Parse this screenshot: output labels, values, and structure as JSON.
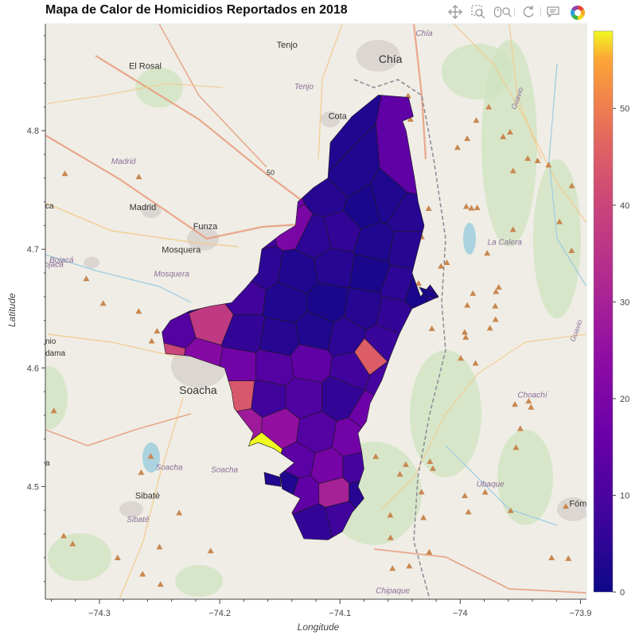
{
  "chart_data": {
    "type": "choropleth-map",
    "title": "Mapa de Calor de Homicidios Reportados en 2018",
    "xlabel": "Longitude",
    "ylabel": "Latitude",
    "xlim": [
      -74.345,
      -73.895
    ],
    "ylim": [
      4.405,
      4.89
    ],
    "x_ticks": [
      -74.3,
      -74.2,
      -74.1,
      -74.0,
      -73.9
    ],
    "x_tick_labels": [
      "−74.3",
      "−74.2",
      "−74.1",
      "−74",
      "−73.9"
    ],
    "y_ticks": [
      4.5,
      4.6,
      4.7,
      4.8
    ],
    "y_tick_labels": [
      "4.5",
      "4.6",
      "4.7",
      "4.8"
    ],
    "colorbar": {
      "palette": "Plasma",
      "range": [
        0,
        58
      ],
      "ticks": [
        0,
        10,
        20,
        30,
        40,
        50
      ],
      "tick_labels": [
        "0",
        "10",
        "20",
        "30",
        "40",
        "50"
      ]
    },
    "regions": [
      {
        "lon": -74.115,
        "lat": 4.78,
        "value": 3
      },
      {
        "lon": -74.11,
        "lat": 4.745,
        "value": 4
      },
      {
        "lon": -74.095,
        "lat": 4.76,
        "value": 3
      },
      {
        "lon": -74.08,
        "lat": 4.735,
        "value": 2
      },
      {
        "lon": -74.06,
        "lat": 4.74,
        "value": 3
      },
      {
        "lon": -74.038,
        "lat": 4.765,
        "value": 14
      },
      {
        "lon": -74.045,
        "lat": 4.73,
        "value": 4
      },
      {
        "lon": -74.18,
        "lat": 4.742,
        "value": 34
      },
      {
        "lon": -74.15,
        "lat": 4.735,
        "value": 16
      },
      {
        "lon": -74.14,
        "lat": 4.72,
        "value": 20
      },
      {
        "lon": -74.17,
        "lat": 4.715,
        "value": 8
      },
      {
        "lon": -74.12,
        "lat": 4.71,
        "value": 5
      },
      {
        "lon": -74.1,
        "lat": 4.715,
        "value": 6
      },
      {
        "lon": -74.07,
        "lat": 4.705,
        "value": 3
      },
      {
        "lon": -74.045,
        "lat": 4.7,
        "value": 4
      },
      {
        "lon": -74.2,
        "lat": 4.69,
        "value": 10
      },
      {
        "lon": -74.165,
        "lat": 4.685,
        "value": 5
      },
      {
        "lon": -74.135,
        "lat": 4.68,
        "value": 3
      },
      {
        "lon": -74.105,
        "lat": 4.685,
        "value": 4
      },
      {
        "lon": -74.075,
        "lat": 4.68,
        "value": 2
      },
      {
        "lon": -74.05,
        "lat": 4.67,
        "value": 5
      },
      {
        "lon": -74.215,
        "lat": 4.665,
        "value": 6
      },
      {
        "lon": -74.18,
        "lat": 4.66,
        "value": 8
      },
      {
        "lon": -74.145,
        "lat": 4.655,
        "value": 3
      },
      {
        "lon": -74.11,
        "lat": 4.655,
        "value": 2
      },
      {
        "lon": -74.08,
        "lat": 4.65,
        "value": 4
      },
      {
        "lon": -74.055,
        "lat": 4.645,
        "value": 6
      },
      {
        "lon": -74.02,
        "lat": 4.665,
        "value": 5
      },
      {
        "lon": -74.24,
        "lat": 4.63,
        "value": 12
      },
      {
        "lon": -74.205,
        "lat": 4.64,
        "value": 37
      },
      {
        "lon": -74.18,
        "lat": 4.63,
        "value": 6
      },
      {
        "lon": -74.15,
        "lat": 4.625,
        "value": 4
      },
      {
        "lon": -74.12,
        "lat": 4.63,
        "value": 3
      },
      {
        "lon": -74.095,
        "lat": 4.625,
        "value": 5
      },
      {
        "lon": -74.065,
        "lat": 4.62,
        "value": 7
      },
      {
        "lon": -74.245,
        "lat": 4.61,
        "value": 40
      },
      {
        "lon": -74.215,
        "lat": 4.605,
        "value": 22
      },
      {
        "lon": -74.185,
        "lat": 4.6,
        "value": 18
      },
      {
        "lon": -74.155,
        "lat": 4.6,
        "value": 12
      },
      {
        "lon": -74.125,
        "lat": 4.605,
        "value": 14
      },
      {
        "lon": -74.09,
        "lat": 4.6,
        "value": 8
      },
      {
        "lon": -74.075,
        "lat": 4.61,
        "value": 45
      },
      {
        "lon": -74.06,
        "lat": 4.59,
        "value": 9
      },
      {
        "lon": -74.185,
        "lat": 4.578,
        "value": 44
      },
      {
        "lon": -74.16,
        "lat": 4.575,
        "value": 8
      },
      {
        "lon": -74.13,
        "lat": 4.575,
        "value": 11
      },
      {
        "lon": -74.1,
        "lat": 4.575,
        "value": 6
      },
      {
        "lon": -74.075,
        "lat": 4.56,
        "value": 17
      },
      {
        "lon": -74.18,
        "lat": 4.55,
        "value": 28
      },
      {
        "lon": -74.15,
        "lat": 4.549,
        "value": 25
      },
      {
        "lon": -74.12,
        "lat": 4.545,
        "value": 12
      },
      {
        "lon": -74.09,
        "lat": 4.54,
        "value": 18
      },
      {
        "lon": -74.165,
        "lat": 4.53,
        "value": 58
      },
      {
        "lon": -74.135,
        "lat": 4.52,
        "value": 13
      },
      {
        "lon": -74.11,
        "lat": 4.515,
        "value": 19
      },
      {
        "lon": -74.085,
        "lat": 4.515,
        "value": 9
      },
      {
        "lon": -74.13,
        "lat": 4.495,
        "value": 14
      },
      {
        "lon": -74.105,
        "lat": 4.495,
        "value": 30
      },
      {
        "lon": -74.08,
        "lat": 4.495,
        "value": 4
      },
      {
        "lon": -74.145,
        "lat": 4.5,
        "value": 3
      },
      {
        "lon": -74.12,
        "lat": 4.47,
        "value": 6
      },
      {
        "lon": -74.1,
        "lat": 4.475,
        "value": 8
      },
      {
        "lon": -74.035,
        "lat": 4.665,
        "value": 2
      }
    ]
  },
  "basemap": {
    "towns": [
      {
        "name": "Chía",
        "lon": -74.058,
        "lat": 4.857,
        "size": 14
      },
      {
        "name": "Tenjo",
        "lon": -74.144,
        "lat": 4.87,
        "size": 11
      },
      {
        "name": "El Rosal",
        "lon": -74.262,
        "lat": 4.852,
        "size": 11
      },
      {
        "name": "Cota",
        "lon": -74.102,
        "lat": 4.81,
        "size": 11
      },
      {
        "name": "Madrid",
        "lon": -74.264,
        "lat": 4.733,
        "size": 11
      },
      {
        "name": "Funza",
        "lon": -74.212,
        "lat": 4.717,
        "size": 11
      },
      {
        "name": "Mosquera",
        "lon": -74.232,
        "lat": 4.697,
        "size": 11
      },
      {
        "name": "Soacha",
        "lon": -74.218,
        "lat": 4.578,
        "size": 14
      },
      {
        "name": "Sibaté",
        "lon": -74.26,
        "lat": 4.49,
        "size": 11
      },
      {
        "name": "Fóme",
        "lon": -73.9,
        "lat": 4.483,
        "size": 11
      }
    ],
    "labels": [
      {
        "name": "Chía",
        "lon": -74.03,
        "lat": 4.88
      },
      {
        "name": "Tenjo",
        "lon": -74.13,
        "lat": 4.835
      },
      {
        "name": "Madrid",
        "lon": -74.28,
        "lat": 4.772
      },
      {
        "name": "Mosquera",
        "lon": -74.24,
        "lat": 4.677
      },
      {
        "name": "Bojacá",
        "lon": -74.34,
        "lat": 4.685
      },
      {
        "name": "Soacha",
        "lon": -74.196,
        "lat": 4.512
      },
      {
        "name": "Soacha",
        "lon": -74.242,
        "lat": 4.514
      },
      {
        "name": "Sibaté",
        "lon": -74.268,
        "lat": 4.47
      },
      {
        "name": "Ubaque",
        "lon": -73.975,
        "lat": 4.5
      },
      {
        "name": "Choachí",
        "lon": -73.94,
        "lat": 4.575
      },
      {
        "name": "La Calera",
        "lon": -73.963,
        "lat": 4.704
      },
      {
        "name": "Chipaque",
        "lon": -74.056,
        "lat": 4.41
      }
    ],
    "edge_fragments": [
      "ca",
      "Bojacá",
      "nio",
      "dama",
      "a",
      "El Rosal",
      "Guavio",
      "Guavio",
      "50"
    ]
  },
  "toolbar": {
    "pan_icon": "pan-icon",
    "zoom_icon": "box-zoom-icon",
    "wheel_icon": "wheel-zoom-icon",
    "reset_icon": "reset-icon",
    "hover_icon": "hover-icon",
    "logo": "bokeh-logo"
  }
}
